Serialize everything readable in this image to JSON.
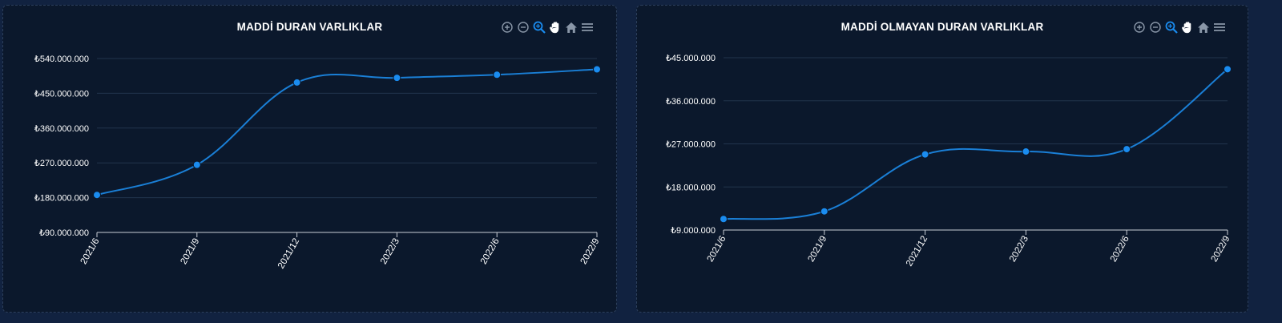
{
  "colors": {
    "line": "#1a7fd6",
    "point": "#1a8cf0",
    "grid": "#22344d",
    "tick_text": "#ffffff",
    "icon": "#8a97a8",
    "icon_active": "#1a8cf0"
  },
  "toolbar_icons": [
    "zoom-in-icon",
    "zoom-out-icon",
    "zoom-selection-icon",
    "pan-hand-icon",
    "home-reset-icon",
    "menu-icon"
  ],
  "chart_data": [
    {
      "type": "line",
      "title": "MADDİ DURAN VARLIKLAR",
      "categories": [
        "2021/6",
        "2021/9",
        "2021/12",
        "2022/3",
        "2022/6",
        "2022/9"
      ],
      "values": [
        187000000,
        265000000,
        478000000,
        490000000,
        498000000,
        512000000
      ],
      "ylim": [
        90000000,
        540000000
      ],
      "yticks": [
        "₺90.000.000",
        "₺180.000.000",
        "₺270.000.000",
        "₺360.000.000",
        "₺450.000.000",
        "₺540.000.000"
      ],
      "grid": true
    },
    {
      "type": "line",
      "title": "MADDİ OLMAYAN DURAN VARLIKLAR",
      "categories": [
        "2021/6",
        "2021/9",
        "2021/12",
        "2022/3",
        "2022/6",
        "2022/9"
      ],
      "values": [
        11300000,
        12900000,
        24800000,
        25400000,
        25900000,
        42600000
      ],
      "ylim": [
        9000000,
        45000000
      ],
      "yticks": [
        "₺9.000.000",
        "₺18.000.000",
        "₺27.000.000",
        "₺36.000.000",
        "₺45.000.000"
      ],
      "grid": true
    }
  ]
}
